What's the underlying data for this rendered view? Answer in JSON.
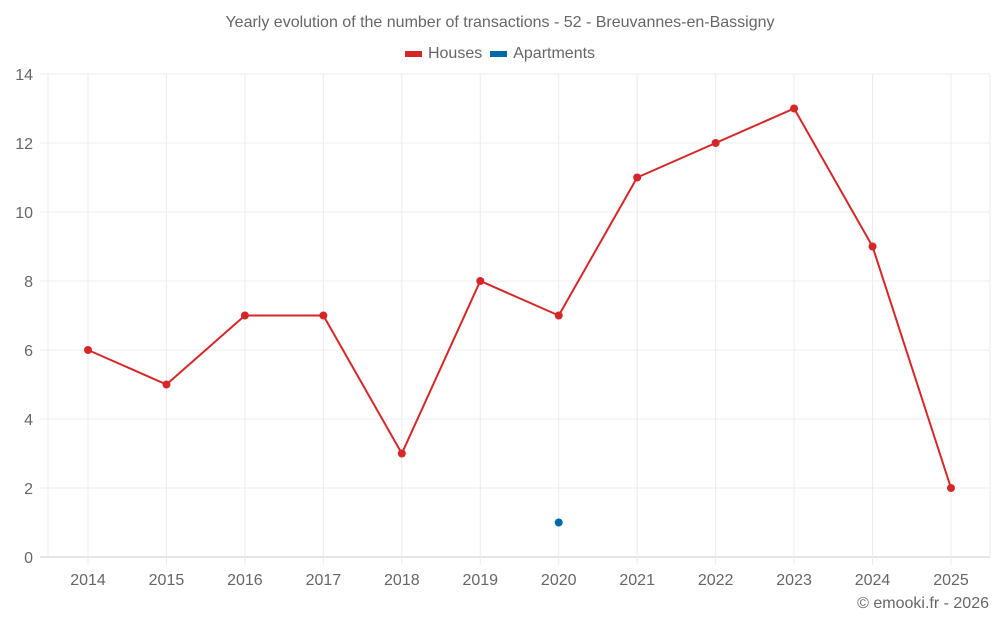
{
  "title": "Yearly evolution of the number of transactions - 52 - Breuvannes-en-Bassigny",
  "legend": [
    {
      "label": "Houses",
      "color": "#d62728"
    },
    {
      "label": "Apartments",
      "color": "#0068a8"
    }
  ],
  "credit": "© emooki.fr - 2026",
  "chart_data": {
    "type": "line",
    "title": "Yearly evolution of the number of transactions - 52 - Breuvannes-en-Bassigny",
    "xlabel": "",
    "ylabel": "",
    "categories": [
      "2014",
      "2015",
      "2016",
      "2017",
      "2018",
      "2019",
      "2020",
      "2021",
      "2022",
      "2023",
      "2024",
      "2025"
    ],
    "series": [
      {
        "name": "Houses",
        "color": "#d62728",
        "values": [
          6,
          5,
          7,
          7,
          3,
          8,
          7,
          11,
          12,
          13,
          9,
          2
        ]
      },
      {
        "name": "Apartments",
        "color": "#0068a8",
        "values": [
          null,
          null,
          null,
          null,
          null,
          null,
          1,
          null,
          null,
          null,
          null,
          null
        ]
      }
    ],
    "yticks": [
      0,
      2,
      4,
      6,
      8,
      10,
      12,
      14
    ],
    "ylim": [
      0,
      14
    ],
    "grid": true,
    "legend_position": "top"
  }
}
